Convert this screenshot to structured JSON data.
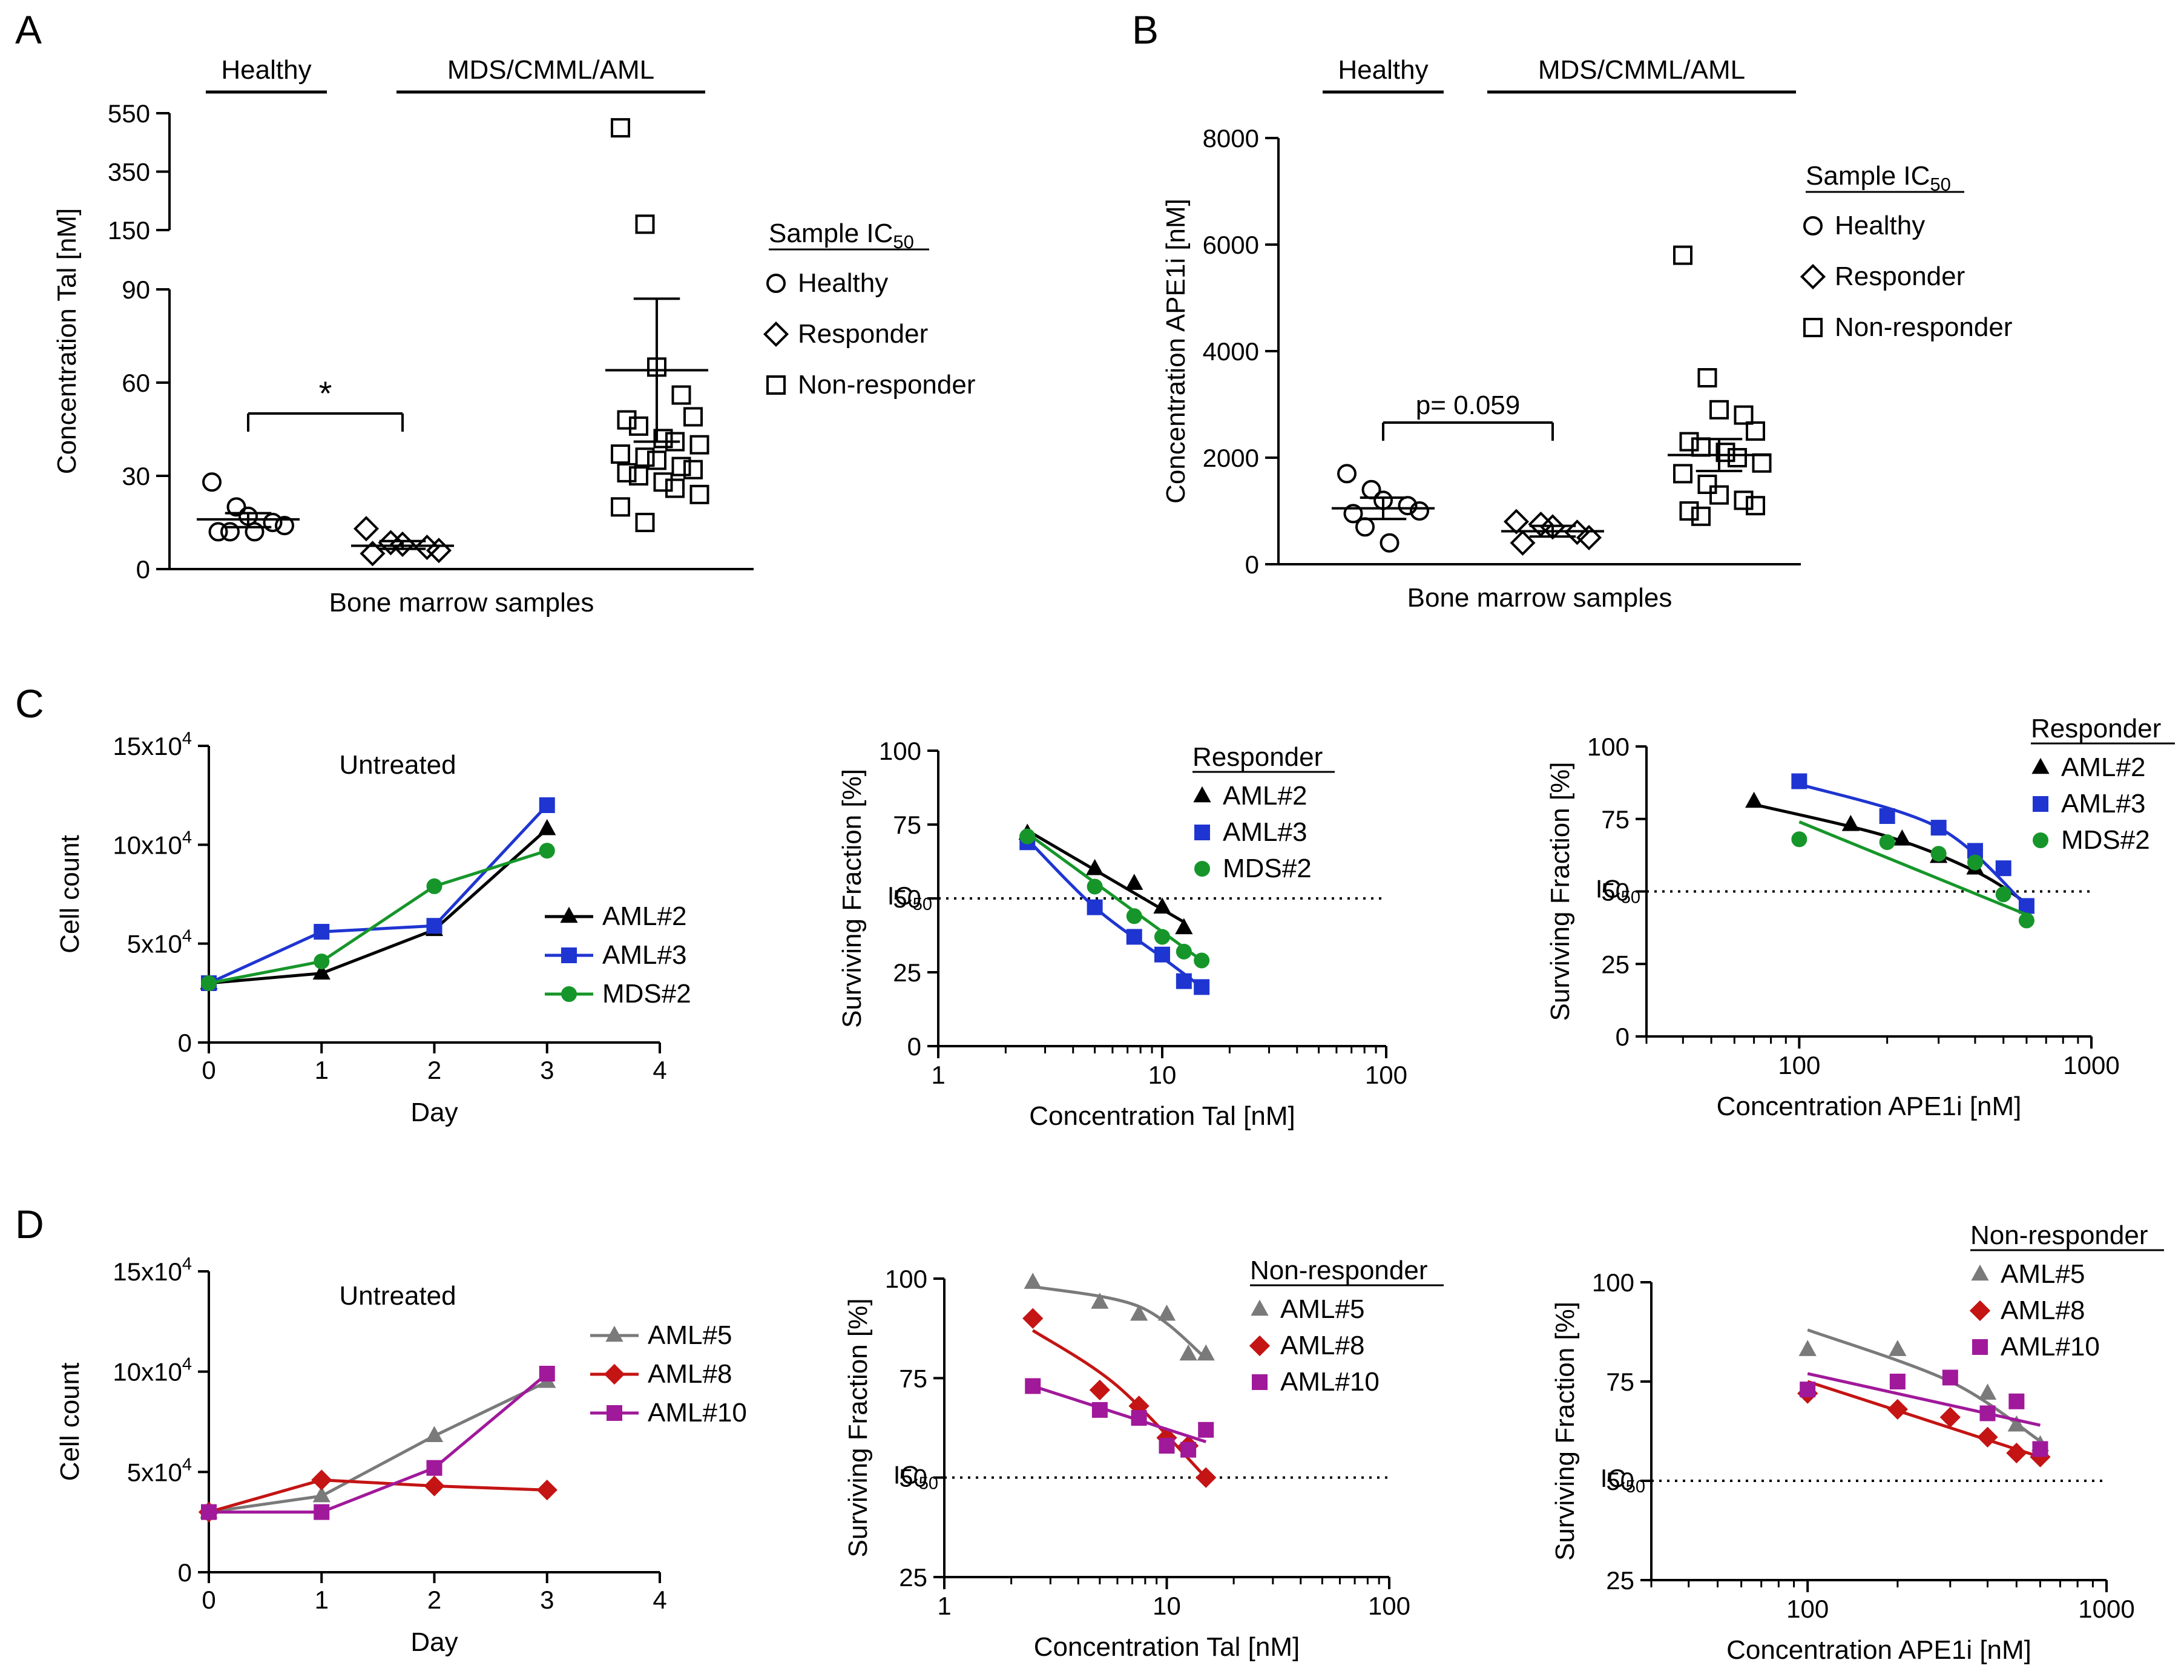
{
  "chart_data": [
    {
      "panel": "A",
      "type": "scatter",
      "xlabel": "Bone marrow samples",
      "ylabel": "Concentration Tal [nM]",
      "yticks_lower": [
        "0",
        "30",
        "60",
        "90"
      ],
      "yticks_upper": [
        "150",
        "350",
        "550"
      ],
      "ylim_lower": [
        0,
        90
      ],
      "ylim_upper": [
        150,
        550
      ],
      "group_headers": [
        "Healthy",
        "MDS/CMML/AML"
      ],
      "legend": {
        "title": "Sample IC",
        "title_sub": "50",
        "entries": [
          "Healthy",
          "Responder",
          "Non-responder"
        ]
      },
      "groups": [
        {
          "name": "Healthy",
          "marker": "circle",
          "values": [
            28,
            20,
            17,
            15,
            14,
            12,
            12,
            12
          ],
          "mean": 16,
          "sem_low": 13.5,
          "sem_high": 18
        },
        {
          "name": "Responder",
          "marker": "diamond",
          "values": [
            13,
            8.5,
            8,
            7,
            6,
            5
          ],
          "mean": 7.5,
          "sem_low": 6.5,
          "sem_high": 9
        },
        {
          "name": "Non-responder",
          "marker": "square",
          "values": [
            500,
            170,
            65,
            56,
            49,
            48,
            46,
            42,
            41,
            40,
            37,
            36,
            35,
            33,
            32,
            31,
            30,
            28,
            26,
            24,
            20,
            15
          ],
          "mean": 64,
          "sem_low": 41,
          "sem_high": 87
        }
      ],
      "significance": {
        "label": "*",
        "between": [
          "Healthy",
          "Responder"
        ]
      }
    },
    {
      "panel": "B",
      "type": "scatter",
      "xlabel": "Bone marrow samples",
      "ylabel": "Concentration APE1i [nM]",
      "yticks": [
        "0",
        "2000",
        "4000",
        "6000",
        "8000"
      ],
      "ylim": [
        0,
        8000
      ],
      "group_headers": [
        "Healthy",
        "MDS/CMML/AML"
      ],
      "legend": {
        "title": "Sample IC",
        "title_sub": "50",
        "entries": [
          "Healthy",
          "Responder",
          "Non-responder"
        ]
      },
      "groups": [
        {
          "name": "Healthy",
          "marker": "circle",
          "values": [
            1700,
            1400,
            1200,
            1100,
            1000,
            950,
            700,
            400
          ],
          "mean": 1050,
          "sem_low": 850,
          "sem_high": 1250
        },
        {
          "name": "Responder",
          "marker": "diamond",
          "values": [
            800,
            750,
            700,
            600,
            500,
            400
          ],
          "mean": 620,
          "sem_low": 520,
          "sem_high": 720
        },
        {
          "name": "Non-responder",
          "marker": "square",
          "values": [
            5800,
            3500,
            2900,
            2800,
            2500,
            2300,
            2200,
            2100,
            2000,
            1900,
            1700,
            1500,
            1300,
            1200,
            1100,
            1000,
            900
          ],
          "mean": 2050,
          "sem_low": 1750,
          "sem_high": 2350
        }
      ],
      "significance": {
        "label": "p= 0.059",
        "between": [
          "Healthy",
          "Responder"
        ]
      }
    },
    {
      "panel": "C",
      "type": "line",
      "title": "Untreated",
      "xlabel": "Day",
      "ylabel": "Cell count",
      "xticks": [
        "0",
        "1",
        "2",
        "3",
        "4"
      ],
      "yticks": [
        "0",
        "5x10",
        "10x10",
        "15x10"
      ],
      "ytick_exp": "4",
      "xlim": [
        0,
        4
      ],
      "ylim": [
        0,
        150000
      ],
      "x": [
        0,
        1,
        2,
        3
      ],
      "series": [
        {
          "name": "AML#2",
          "color": "#000000",
          "marker": "triangle",
          "values": [
            30000,
            35000,
            57000,
            108000
          ]
        },
        {
          "name": "AML#3",
          "color": "#1f35d1",
          "marker": "square",
          "values": [
            30000,
            56000,
            59000,
            120000
          ]
        },
        {
          "name": "MDS#2",
          "color": "#16962a",
          "marker": "circle",
          "values": [
            30000,
            41000,
            79000,
            97000
          ]
        }
      ]
    },
    {
      "panel": "C",
      "type": "scatter",
      "xlabel": "Concentration Tal [nM]",
      "ylabel": "Surviving Fraction [%]",
      "xscale": "log",
      "xticks": [
        "1",
        "10",
        "100"
      ],
      "yticks": [
        "0",
        "25",
        "50",
        "75",
        "100"
      ],
      "xlim": [
        1,
        100
      ],
      "ylim": [
        0,
        100
      ],
      "reference_line": {
        "label": "IC",
        "label_sub": "50",
        "y": 50
      },
      "legend_title": "Responder",
      "series": [
        {
          "name": "AML#2",
          "color": "#000000",
          "marker": "triangle",
          "x": [
            2.5,
            5,
            7.5,
            10,
            12.5
          ],
          "y": [
            72,
            60,
            55,
            47,
            40
          ],
          "fit": [
            [
              2.5,
              73
            ],
            [
              12.5,
              42
            ]
          ]
        },
        {
          "name": "AML#3",
          "color": "#1f35d1",
          "marker": "square",
          "x": [
            2.5,
            5,
            7.5,
            10,
            12.5,
            15
          ],
          "y": [
            69,
            47,
            37,
            31,
            22,
            20
          ],
          "fit": [
            [
              2.5,
              70
            ],
            [
              5,
              47
            ],
            [
              10,
              30
            ],
            [
              15,
              20
            ]
          ]
        },
        {
          "name": "MDS#2",
          "color": "#16962a",
          "marker": "circle",
          "x": [
            2.5,
            5,
            7.5,
            10,
            12.5,
            15
          ],
          "y": [
            71,
            54,
            44,
            37,
            32,
            29
          ],
          "fit": [
            [
              2.5,
              72
            ],
            [
              15,
              29
            ]
          ]
        }
      ]
    },
    {
      "panel": "C",
      "type": "scatter",
      "xlabel": "Concentration APE1i  [nM]",
      "ylabel": "Surviving Fraction [%]",
      "xscale": "log",
      "xticks": [
        "100",
        "1000"
      ],
      "yticks": [
        "0",
        "25",
        "50",
        "75",
        "100"
      ],
      "xlim": [
        30,
        1000
      ],
      "ylim": [
        0,
        100
      ],
      "reference_line": {
        "label": "IC",
        "label_sub": "50",
        "y": 50
      },
      "legend_title": "Responder",
      "series": [
        {
          "name": "AML#2",
          "color": "#000000",
          "marker": "triangle",
          "x": [
            70,
            150,
            225,
            300,
            400
          ],
          "y": [
            81,
            73,
            68,
            62,
            58
          ],
          "fit": [
            [
              70,
              80
            ],
            [
              200,
              69
            ],
            [
              400,
              57
            ],
            [
              600,
              46
            ]
          ]
        },
        {
          "name": "AML#3",
          "color": "#1f35d1",
          "marker": "square",
          "x": [
            100,
            200,
            300,
            400,
            500,
            600
          ],
          "y": [
            88,
            76,
            72,
            64,
            58,
            45
          ],
          "fit": [
            [
              100,
              87
            ],
            [
              300,
              72
            ],
            [
              600,
              45
            ]
          ]
        },
        {
          "name": "MDS#2",
          "color": "#16962a",
          "marker": "circle",
          "x": [
            100,
            200,
            300,
            400,
            500,
            600
          ],
          "y": [
            68,
            67,
            63,
            60,
            49,
            40
          ],
          "fit": [
            [
              100,
              74
            ],
            [
              600,
              42
            ]
          ]
        }
      ]
    },
    {
      "panel": "D",
      "type": "line",
      "title": "Untreated",
      "xlabel": "Day",
      "ylabel": "Cell count",
      "xticks": [
        "0",
        "1",
        "2",
        "3",
        "4"
      ],
      "yticks": [
        "0",
        "5x10",
        "10x10",
        "15x10"
      ],
      "ytick_exp": "4",
      "xlim": [
        0,
        4
      ],
      "ylim": [
        0,
        150000
      ],
      "x": [
        0,
        1,
        2,
        3
      ],
      "series": [
        {
          "name": "AML#5",
          "color": "#7a7a7a",
          "marker": "triangle",
          "values": [
            30000,
            38000,
            68000,
            95000
          ]
        },
        {
          "name": "AML#8",
          "color": "#c41414",
          "marker": "diamond",
          "values": [
            30000,
            46000,
            43000,
            41000
          ]
        },
        {
          "name": "AML#10",
          "color": "#a0199a",
          "marker": "square",
          "values": [
            30000,
            30000,
            52000,
            99000
          ]
        }
      ]
    },
    {
      "panel": "D",
      "type": "scatter",
      "xlabel": "Concentration Tal [nM]",
      "ylabel": "Surviving Fraction [%]",
      "xscale": "log",
      "xticks": [
        "1",
        "10",
        "100"
      ],
      "yticks": [
        "25",
        "50",
        "75",
        "100"
      ],
      "xlim": [
        1,
        100
      ],
      "ylim": [
        25,
        100
      ],
      "reference_line": {
        "label": "IC",
        "label_sub": "50",
        "y": 50
      },
      "legend_title": "Non-responder",
      "series": [
        {
          "name": "AML#5",
          "color": "#7a7a7a",
          "marker": "triangle",
          "x": [
            2.5,
            5,
            7.5,
            10,
            12.5,
            15
          ],
          "y": [
            99,
            94,
            91,
            91,
            81,
            81
          ],
          "fit": [
            [
              2.5,
              98
            ],
            [
              7.5,
              93
            ],
            [
              15,
              80
            ]
          ]
        },
        {
          "name": "AML#8",
          "color": "#c41414",
          "marker": "diamond",
          "x": [
            2.5,
            5,
            7.5,
            10,
            12.5,
            15
          ],
          "y": [
            90,
            72,
            68,
            60,
            58,
            50
          ],
          "fit": [
            [
              2.5,
              87
            ],
            [
              6,
              73
            ],
            [
              15,
              50
            ]
          ]
        },
        {
          "name": "AML#10",
          "color": "#a0199a",
          "marker": "square",
          "x": [
            2.5,
            5,
            7.5,
            10,
            12.5,
            15
          ],
          "y": [
            73,
            67,
            65,
            58,
            57,
            62
          ],
          "fit": [
            [
              2.5,
              73
            ],
            [
              15,
              59
            ]
          ]
        }
      ]
    },
    {
      "panel": "D",
      "type": "scatter",
      "xlabel": "Concentration APE1i  [nM]",
      "ylabel": "Surviving Fraction [%]",
      "xscale": "log",
      "xticks": [
        "100",
        "1000"
      ],
      "yticks": [
        "25",
        "50",
        "75",
        "100"
      ],
      "xlim": [
        30,
        1000
      ],
      "ylim": [
        25,
        100
      ],
      "reference_line": {
        "label": "IC",
        "label_sub": "50",
        "y": 50
      },
      "legend_title": "Non-responder",
      "series": [
        {
          "name": "AML#5",
          "color": "#7a7a7a",
          "marker": "triangle",
          "x": [
            100,
            200,
            400,
            500,
            600
          ],
          "y": [
            83,
            83,
            72,
            64,
            59
          ],
          "fit": [
            [
              100,
              88
            ],
            [
              300,
              75
            ],
            [
              600,
              60
            ]
          ]
        },
        {
          "name": "AML#8",
          "color": "#c41414",
          "marker": "diamond",
          "x": [
            100,
            200,
            300,
            400,
            500,
            600
          ],
          "y": [
            72,
            68,
            66,
            61,
            57,
            56
          ],
          "fit": [
            [
              100,
              75
            ],
            [
              600,
              56
            ]
          ]
        },
        {
          "name": "AML#10",
          "color": "#a0199a",
          "marker": "square",
          "x": [
            100,
            200,
            300,
            400,
            500,
            600
          ],
          "y": [
            73,
            75,
            76,
            67,
            70,
            58
          ],
          "fit": [
            [
              100,
              77
            ],
            [
              600,
              64
            ]
          ]
        }
      ]
    }
  ],
  "panel_letters": [
    "A",
    "B",
    "C",
    "D"
  ]
}
